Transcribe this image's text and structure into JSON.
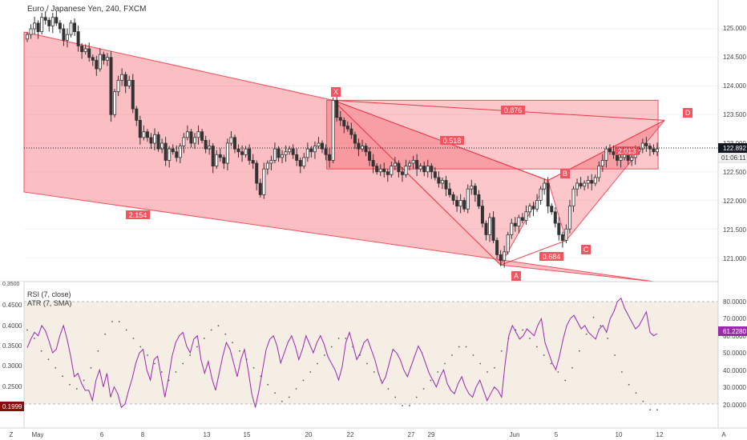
{
  "header": {
    "symbol_title": "Euro / Japanese Yen, 240, FXCM"
  },
  "price_axis": {
    "ticks": [
      "125.000",
      "124.500",
      "124.000",
      "123.500",
      "123.000",
      "122.500",
      "122.000",
      "121.500",
      "121.000"
    ],
    "last_price": "122.892",
    "countdown": "01:06:11"
  },
  "time_axis": {
    "ticks": [
      "May",
      "6",
      "8",
      "13",
      "15",
      "20",
      "22",
      "27",
      "29",
      "Jun",
      "5",
      "10",
      "12"
    ]
  },
  "corner_labels": {
    "left": "Z",
    "right": "A"
  },
  "pattern_labels": {
    "points": [
      "X",
      "A",
      "B",
      "C",
      "D"
    ],
    "ratios": [
      "0.876",
      "0.518",
      "2.154",
      "0.684",
      "2.013"
    ]
  },
  "indicator_pane": {
    "rsi_label": "RSI (7, close)",
    "atr_label": "ATR (7, SMA)",
    "rsi_ticks": [
      "80.0000",
      "70.0000",
      "60.0000",
      "50.0000",
      "40.0000",
      "30.0000",
      "20.0000"
    ],
    "atr_ticks": [
      "0.4500",
      "0.4000",
      "0.3500",
      "0.3000",
      "0.2500"
    ],
    "atr_top_partial": "0.3500",
    "rsi_value": "61.2280",
    "atr_value": "0.1999"
  },
  "colors": {
    "pattern_fill": "#f23645",
    "pattern_label_bg": "#f7525f",
    "candle": "#333333",
    "rsi_line": "#9c27b0",
    "rsi_band": "#f0e8dc",
    "price_marker": "#131722",
    "rsi_marker": "#9c27b0",
    "atr_marker": "#880e0e"
  },
  "chart_data": {
    "type": "candlestick",
    "title": "Euro / Japanese Yen, 240, FXCM",
    "ylim": [
      120.7,
      125.35
    ],
    "x_ticks": [
      "May",
      "6",
      "8",
      "13",
      "15",
      "20",
      "22",
      "27",
      "29",
      "Jun",
      "5",
      "10",
      "12"
    ],
    "last_close": 122.892,
    "harmonic_points": [
      {
        "label": "X",
        "bar": 84,
        "price": 123.75
      },
      {
        "label": "A",
        "bar": 130,
        "price": 120.87
      },
      {
        "label": "B",
        "bar": 143,
        "price": 122.35
      },
      {
        "label": "C",
        "bar": 148,
        "price": 121.3
      },
      {
        "label": "D",
        "bar": 175,
        "price": 123.4
      }
    ],
    "ratios": {
      "XAB": 0.684,
      "ABC": 0.518,
      "BCD": 2.013,
      "XAD": 0.876,
      "outer": 2.154
    },
    "closes": [
      124.9,
      125.0,
      125.1,
      124.95,
      125.2,
      125.15,
      125.05,
      125.2,
      125.1,
      125.0,
      124.8,
      124.9,
      125.1,
      124.95,
      124.7,
      124.6,
      124.65,
      124.5,
      124.45,
      124.3,
      124.55,
      124.45,
      124.5,
      123.5,
      123.9,
      124.1,
      124.2,
      124.0,
      124.1,
      123.6,
      123.4,
      123.1,
      123.2,
      123.1,
      123.0,
      123.15,
      122.9,
      123.0,
      122.7,
      122.9,
      122.85,
      122.75,
      122.95,
      123.1,
      123.2,
      123.0,
      123.1,
      123.2,
      123.05,
      122.9,
      122.95,
      122.6,
      122.8,
      122.75,
      122.65,
      123.0,
      123.1,
      122.9,
      122.85,
      122.8,
      122.9,
      122.7,
      122.65,
      122.3,
      122.1,
      122.55,
      122.65,
      122.7,
      122.9,
      122.75,
      122.8,
      122.85,
      122.9,
      122.8,
      122.7,
      122.6,
      122.75,
      122.9,
      122.85,
      122.95,
      123.0,
      122.9,
      122.8,
      122.7,
      123.75,
      123.45,
      123.4,
      123.3,
      123.25,
      123.15,
      123.0,
      122.9,
      122.95,
      122.85,
      122.7,
      122.6,
      122.5,
      122.55,
      122.5,
      122.45,
      122.6,
      122.65,
      122.5,
      122.45,
      122.6,
      122.65,
      122.7,
      122.55,
      122.6,
      122.5,
      122.6,
      122.5,
      122.4,
      122.3,
      122.35,
      122.2,
      122.1,
      122.0,
      121.9,
      122.0,
      121.85,
      122.2,
      122.25,
      122.1,
      121.9,
      121.6,
      121.4,
      121.7,
      121.3,
      121.05,
      120.95,
      121.1,
      121.4,
      121.6,
      121.55,
      121.7,
      121.65,
      121.8,
      121.9,
      121.85,
      122.0,
      122.2,
      122.3,
      121.9,
      121.8,
      121.6,
      121.4,
      121.3,
      121.5,
      121.9,
      122.2,
      122.3,
      122.25,
      122.3,
      122.35,
      122.3,
      122.4,
      122.6,
      122.7,
      122.9,
      122.85,
      122.8,
      122.7,
      122.75,
      122.8,
      122.7,
      122.75,
      122.85,
      122.9,
      123.0,
      122.95,
      122.9,
      122.85,
      122.9
    ],
    "rsi": {
      "ylim": [
        0,
        100
      ],
      "band": [
        20,
        80
      ],
      "last": 61.228,
      "values": [
        53,
        58,
        62,
        60,
        66,
        63,
        57,
        50,
        52,
        60,
        66,
        58,
        48,
        36,
        38,
        32,
        28,
        28,
        22,
        34,
        40,
        30,
        38,
        24,
        30,
        26,
        18,
        20,
        28,
        35,
        44,
        50,
        52,
        40,
        34,
        46,
        48,
        36,
        24,
        35,
        48,
        56,
        60,
        62,
        54,
        50,
        58,
        60,
        46,
        38,
        45,
        35,
        28,
        38,
        48,
        56,
        52,
        44,
        36,
        46,
        52,
        40,
        26,
        18,
        28,
        40,
        52,
        58,
        60,
        54,
        44,
        50,
        56,
        60,
        54,
        46,
        52,
        60,
        55,
        50,
        56,
        60,
        55,
        48,
        44,
        40,
        34,
        42,
        56,
        62,
        54,
        46,
        50,
        56,
        58,
        52,
        46,
        38,
        32,
        36,
        44,
        52,
        50,
        46,
        40,
        36,
        42,
        48,
        54,
        50,
        44,
        38,
        34,
        30,
        36,
        40,
        32,
        28,
        26,
        32,
        36,
        30,
        26,
        24,
        30,
        34,
        28,
        22,
        26,
        30,
        28,
        24,
        44,
        60,
        66,
        62,
        58,
        60,
        64,
        62,
        60,
        66,
        70,
        56,
        50,
        44,
        40,
        48,
        58,
        66,
        70,
        72,
        68,
        64,
        66,
        62,
        60,
        58,
        64,
        66,
        62,
        70,
        74,
        80,
        82,
        76,
        72,
        68,
        64,
        66,
        70,
        74,
        62,
        60,
        61.228
      ]
    },
    "atr": {
      "ylim": [
        0.195,
        0.49
      ],
      "last": 0.1999,
      "values": [
        0.39,
        0.38,
        0.37,
        0.35,
        0.34,
        0.33,
        0.32,
        0.31,
        0.3,
        0.29,
        0.28,
        0.27,
        0.26,
        0.25,
        0.25,
        0.26,
        0.27,
        0.28,
        0.3,
        0.32,
        0.34,
        0.36,
        0.38,
        0.4,
        0.41,
        0.42,
        0.41,
        0.4,
        0.39,
        0.38,
        0.37,
        0.36,
        0.35,
        0.34,
        0.33,
        0.32,
        0.31,
        0.3,
        0.29,
        0.28,
        0.27,
        0.28,
        0.29,
        0.3,
        0.31,
        0.32,
        0.33,
        0.34,
        0.35,
        0.36,
        0.37,
        0.38,
        0.39,
        0.4,
        0.4,
        0.39,
        0.38,
        0.37,
        0.36,
        0.35,
        0.34,
        0.33,
        0.32,
        0.31,
        0.3,
        0.29,
        0.28,
        0.27,
        0.26,
        0.25,
        0.24,
        0.23,
        0.22,
        0.22,
        0.23,
        0.24,
        0.25,
        0.26,
        0.27,
        0.28,
        0.29,
        0.3,
        0.31,
        0.32,
        0.33,
        0.34,
        0.35,
        0.36,
        0.37,
        0.38,
        0.37,
        0.36,
        0.35,
        0.34,
        0.33,
        0.32,
        0.31,
        0.3,
        0.29,
        0.28,
        0.27,
        0.26,
        0.25,
        0.24,
        0.23,
        0.22,
        0.21,
        0.2,
        0.21,
        0.22,
        0.23,
        0.24,
        0.25,
        0.26,
        0.27,
        0.28,
        0.29,
        0.3,
        0.31,
        0.32,
        0.33,
        0.34,
        0.35,
        0.36,
        0.35,
        0.34,
        0.33,
        0.32,
        0.31,
        0.3,
        0.29,
        0.28,
        0.3,
        0.32,
        0.34,
        0.36,
        0.37,
        0.38,
        0.39,
        0.4,
        0.39,
        0.38,
        0.37,
        0.36,
        0.35,
        0.34,
        0.33,
        0.32,
        0.31,
        0.3,
        0.29,
        0.28,
        0.27,
        0.28,
        0.3,
        0.32,
        0.34,
        0.36,
        0.38,
        0.4,
        0.42,
        0.41,
        0.4,
        0.39,
        0.37,
        0.35,
        0.33,
        0.31,
        0.29,
        0.27,
        0.26,
        0.25,
        0.24,
        0.23,
        0.22,
        0.21,
        0.2,
        0.2,
        0.1999
      ]
    }
  }
}
